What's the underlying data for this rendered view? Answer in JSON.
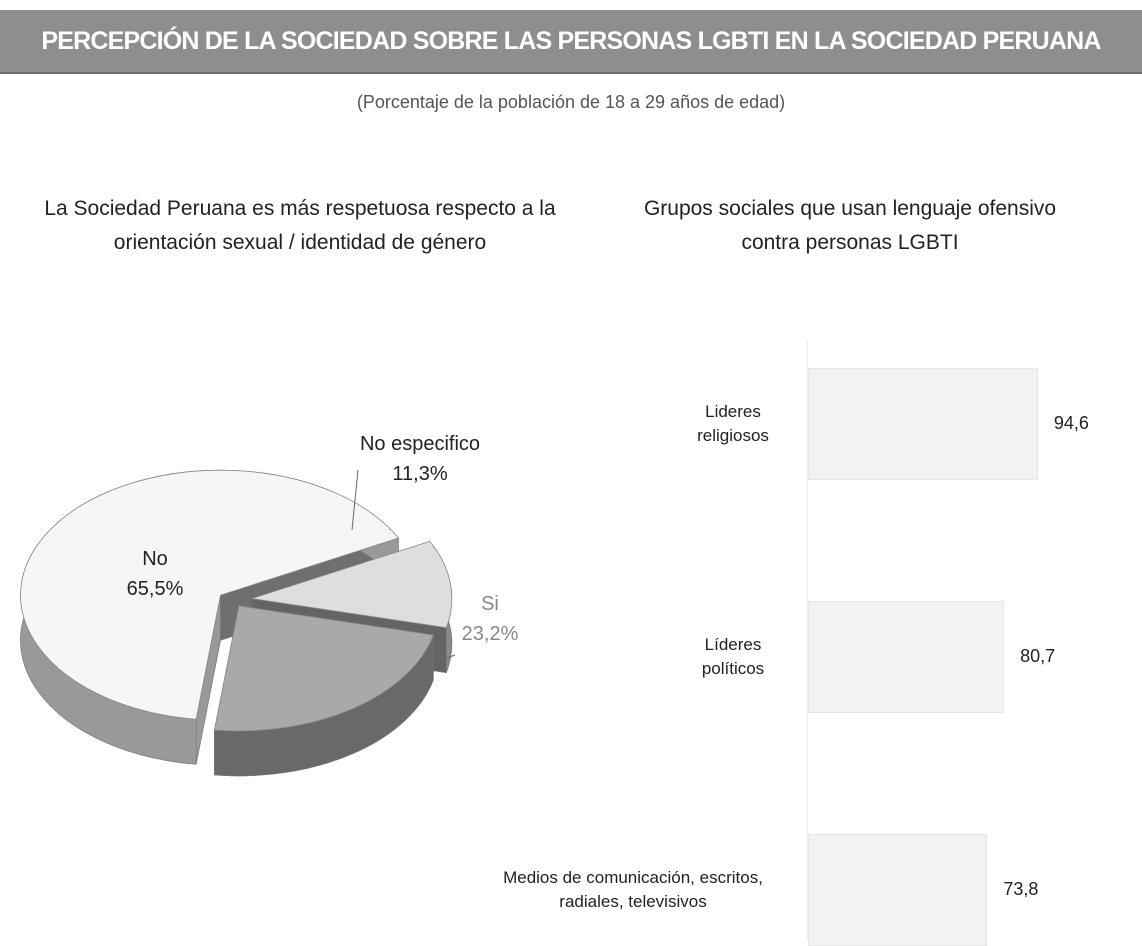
{
  "title": "PERCEPCIÓN DE LA SOCIEDAD SOBRE LAS PERSONAS LGBTI EN LA SOCIEDAD PERUANA",
  "subtitle": "(Porcentaje de la población de 18 a 29 años de edad)",
  "chart_data": [
    {
      "type": "pie",
      "title": "La Sociedad Peruana es más respetuosa respecto a la orientación sexual / identidad de género",
      "categories": [
        "No",
        "No especifico",
        "Si"
      ],
      "values": [
        65.5,
        11.3,
        23.2
      ],
      "value_labels": [
        "65,5%",
        "11,3%",
        "23,2%"
      ],
      "colors": [
        "#f6f6f6",
        "#dedede",
        "#a9a9a9"
      ]
    },
    {
      "type": "bar",
      "title": "Grupos sociales que usan lenguaje ofensivo contra personas LGBTI",
      "categories": [
        "Lideres religiosos",
        "Líderes políticos",
        "Medios de comunicación, escritos, radiales, televisivos"
      ],
      "values": [
        94.6,
        80.7,
        73.8
      ],
      "value_labels": [
        "94,6",
        "80,7",
        "73,8"
      ],
      "color": "#f2f2f2"
    }
  ]
}
